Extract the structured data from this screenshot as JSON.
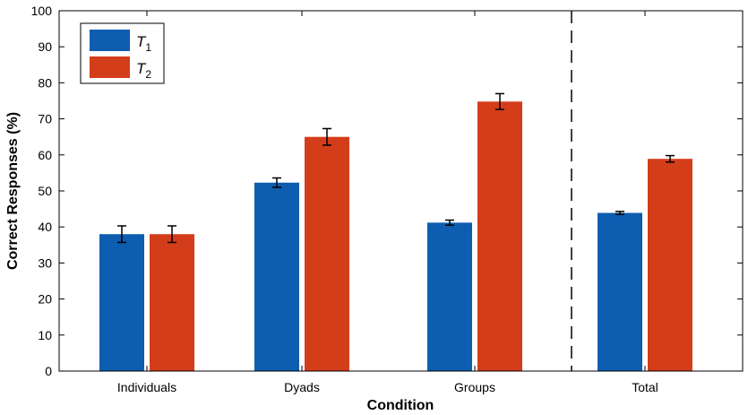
{
  "chart_data": {
    "type": "bar",
    "title": "",
    "xlabel": "Condition",
    "ylabel": "Correct Responses (%)",
    "ylim": [
      0,
      100
    ],
    "yticks": [
      0,
      10,
      20,
      30,
      40,
      50,
      60,
      70,
      80,
      90,
      100
    ],
    "categories": [
      "Individuals",
      "Dyads",
      "Groups",
      "Total"
    ],
    "series": [
      {
        "name": "T1",
        "base": "T",
        "sub": "1",
        "color": "#0d5db1",
        "values": [
          38,
          52.3,
          41.2,
          43.9
        ],
        "errors": [
          2.3,
          1.3,
          0.7,
          0.4
        ]
      },
      {
        "name": "T2",
        "base": "T",
        "sub": "2",
        "color": "#d43d1a",
        "values": [
          38,
          65,
          74.8,
          58.9
        ],
        "errors": [
          2.3,
          2.3,
          2.2,
          0.9
        ]
      }
    ],
    "separator": {
      "style": "dashed",
      "between": [
        "Groups",
        "Total"
      ]
    },
    "legend": {
      "position": "top-left"
    },
    "grid": false
  }
}
